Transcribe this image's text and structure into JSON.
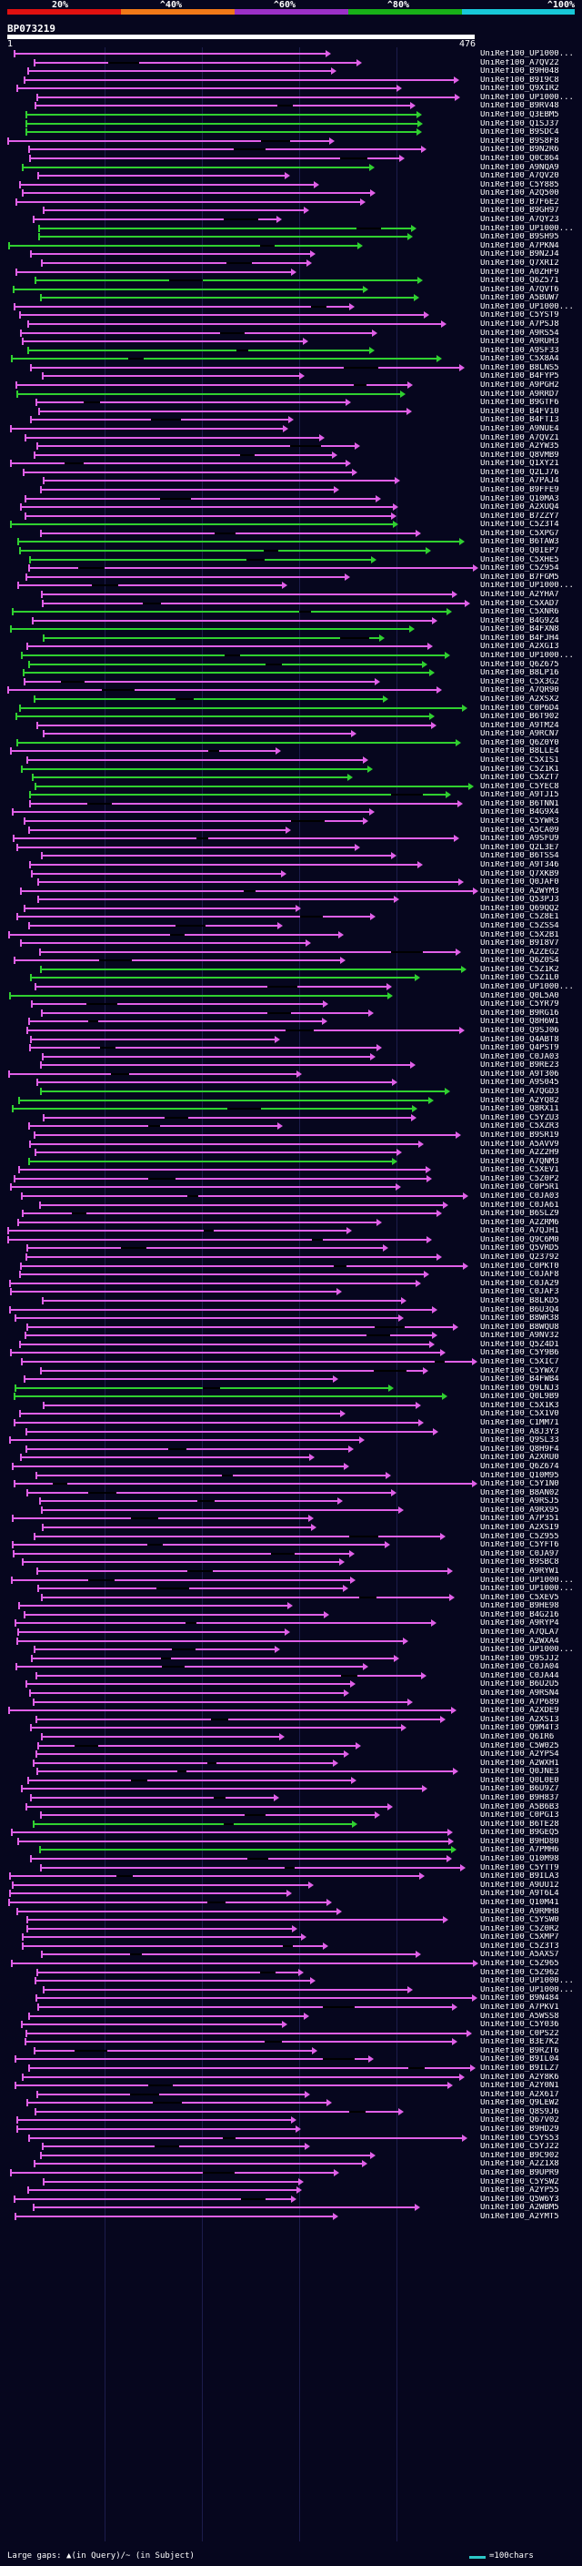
{
  "legend": {
    "labels": [
      "20%",
      "^40%",
      "^60%",
      "^80%",
      "^100%"
    ],
    "colors": [
      "#e01010",
      "#f07818",
      "#9b30c8",
      "#18b018",
      "#18c8d8"
    ]
  },
  "query": {
    "title": "BP073219",
    "start": "1",
    "end": "476"
  },
  "hit_colors": {
    "magenta": "#e060e8",
    "green": "#30d030",
    "black_bar": "#000000"
  },
  "footer": {
    "gaps_text": "Large gaps: ▲(in Query)/~ (in Subject)",
    "scale_text": "=100chars"
  },
  "hits": [
    {
      "label": "UniRef100_UP1000...",
      "color": "magenta"
    },
    {
      "label": "UniRef100_A7QV22",
      "color": "magenta"
    },
    {
      "label": "UniRef100_B9H048",
      "color": "magenta"
    },
    {
      "label": "UniRef100_B9I9C8",
      "color": "magenta"
    },
    {
      "label": "UniRef100_Q9XIR2",
      "color": "magenta"
    },
    {
      "label": "UniRef100_UP1000...",
      "color": "magenta"
    },
    {
      "label": "UniRef100_B9RV48",
      "color": "magenta"
    },
    {
      "label": "UniRef100_Q3EBM5",
      "color": "green"
    },
    {
      "label": "UniRef100_Q1SJ37",
      "color": "green"
    },
    {
      "label": "UniRef100_B9SDC4",
      "color": "green"
    },
    {
      "label": "UniRef100_B9S8F8",
      "color": "magenta"
    },
    {
      "label": "UniRef100_B9N2R6",
      "color": "magenta"
    },
    {
      "label": "UniRef100_Q0C864",
      "color": "magenta"
    },
    {
      "label": "UniRef100_A9NQA9",
      "color": "green"
    },
    {
      "label": "UniRef100_A7QV20",
      "color": "magenta"
    },
    {
      "label": "UniRef100_C5Y885",
      "color": "magenta"
    },
    {
      "label": "UniRef100_A2Q500",
      "color": "magenta"
    },
    {
      "label": "UniRef100_B7F6E2",
      "color": "magenta"
    },
    {
      "label": "UniRef100_B9GH97",
      "color": "magenta"
    },
    {
      "label": "UniRef100_A7QY23",
      "color": "magenta"
    },
    {
      "label": "UniRef100_UP1000...",
      "color": "green"
    },
    {
      "label": "UniRef100_B9SH95",
      "color": "green"
    },
    {
      "label": "UniRef100_A7PKN4",
      "color": "green"
    },
    {
      "label": "UniRef100_B9N2J4",
      "color": "magenta"
    },
    {
      "label": "UniRef100_Q7XRI2",
      "color": "magenta"
    },
    {
      "label": "UniRef100_A0ZHF9",
      "color": "magenta"
    },
    {
      "label": "UniRef100_Q6Z571",
      "color": "green"
    },
    {
      "label": "UniRef100_A7QVT6",
      "color": "green"
    },
    {
      "label": "UniRef100_A5BUW7",
      "color": "green"
    },
    {
      "label": "UniRef100_UP1000...",
      "color": "magenta"
    },
    {
      "label": "UniRef100_C5YST9",
      "color": "magenta"
    },
    {
      "label": "UniRef100_A7PSJ8",
      "color": "magenta"
    },
    {
      "label": "UniRef100_A9RS54",
      "color": "magenta"
    },
    {
      "label": "UniRef100_A9RUH3",
      "color": "magenta"
    },
    {
      "label": "UniRef100_A9SF33",
      "color": "green"
    },
    {
      "label": "UniRef100_C5X8A4",
      "color": "green"
    },
    {
      "label": "UniRef100_B8LNS5",
      "color": "magenta"
    },
    {
      "label": "UniRef100_B4FYP5",
      "color": "magenta"
    },
    {
      "label": "UniRef100_A9PGH2",
      "color": "magenta"
    },
    {
      "label": "UniRef100_A9RRD7",
      "color": "green"
    },
    {
      "label": "UniRef100_B9GTF6",
      "color": "magenta"
    },
    {
      "label": "UniRef100_B4FV10",
      "color": "magenta"
    },
    {
      "label": "UniRef100_B4FTI3",
      "color": "magenta"
    },
    {
      "label": "UniRef100_A9NUE4",
      "color": "magenta"
    },
    {
      "label": "UniRef100_A7QVZ1",
      "color": "magenta"
    },
    {
      "label": "UniRef100_A2YW35",
      "color": "magenta"
    },
    {
      "label": "UniRef100_Q8VMB9",
      "color": "magenta"
    },
    {
      "label": "UniRef100_Q1XY21",
      "color": "magenta"
    },
    {
      "label": "UniRef100_Q2LJ76",
      "color": "magenta"
    },
    {
      "label": "UniRef100_A7PAJ4",
      "color": "magenta"
    },
    {
      "label": "UniRef100_B9FFE9",
      "color": "magenta"
    },
    {
      "label": "UniRef100_Q10MA3",
      "color": "magenta"
    },
    {
      "label": "UniRef100_A2XUQ4",
      "color": "magenta"
    },
    {
      "label": "UniRef100_B7ZZY7",
      "color": "magenta"
    },
    {
      "label": "UniRef100_C5Z3T4",
      "color": "green"
    },
    {
      "label": "UniRef100_C5XPG7",
      "color": "magenta"
    },
    {
      "label": "UniRef100_B6TAW3",
      "color": "green"
    },
    {
      "label": "UniRef100_Q0IEP7",
      "color": "green"
    },
    {
      "label": "UniRef100_C5XHE5",
      "color": "green"
    },
    {
      "label": "UniRef100_C5Z954",
      "color": "magenta"
    },
    {
      "label": "UniRef100_B7FGM5",
      "color": "magenta"
    },
    {
      "label": "UniRef100_UP1000...",
      "color": "magenta"
    },
    {
      "label": "UniRef100_A2YHA7",
      "color": "magenta"
    },
    {
      "label": "UniRef100_C5XAD7",
      "color": "magenta"
    },
    {
      "label": "UniRef100_C5XNR6",
      "color": "green"
    },
    {
      "label": "UniRef100_B4G9Z4",
      "color": "magenta"
    },
    {
      "label": "UniRef100_B4FXN8",
      "color": "green"
    },
    {
      "label": "UniRef100_B4FJH4",
      "color": "green"
    },
    {
      "label": "UniRef100_A2XGI3",
      "color": "magenta"
    },
    {
      "label": "UniRef100_UP1000...",
      "color": "green"
    },
    {
      "label": "UniRef100_Q6Z675",
      "color": "green"
    },
    {
      "label": "UniRef100_B8LP16",
      "color": "green"
    },
    {
      "label": "UniRef100_C5X3G2",
      "color": "magenta"
    },
    {
      "label": "UniRef100_A7QR90",
      "color": "magenta"
    },
    {
      "label": "UniRef100_A2XSX2",
      "color": "green"
    },
    {
      "label": "UniRef100_C0P6D4",
      "color": "green"
    },
    {
      "label": "UniRef100_B6T902",
      "color": "green"
    },
    {
      "label": "UniRef100_A9TM24",
      "color": "magenta"
    },
    {
      "label": "UniRef100_A9RCN7",
      "color": "magenta"
    },
    {
      "label": "UniRef100_Q6Z0Y0",
      "color": "green"
    },
    {
      "label": "UniRef100_B8LLE4",
      "color": "magenta"
    },
    {
      "label": "UniRef100_C5XIS1",
      "color": "magenta"
    },
    {
      "label": "UniRef100_C5Z1K1",
      "color": "green"
    },
    {
      "label": "UniRef100_C5XZT7",
      "color": "green"
    },
    {
      "label": "UniRef100_C5YEC8",
      "color": "green"
    },
    {
      "label": "UniRef100_A9TJI5",
      "color": "green"
    },
    {
      "label": "UniRef100_B6TNN1",
      "color": "magenta"
    },
    {
      "label": "UniRef100_B4G9X4",
      "color": "magenta"
    },
    {
      "label": "UniRef100_C5YWR3",
      "color": "magenta"
    },
    {
      "label": "UniRef100_A5CA09",
      "color": "magenta"
    },
    {
      "label": "UniRef100_A9SFU9",
      "color": "magenta"
    },
    {
      "label": "UniRef100_Q2L3E7",
      "color": "magenta"
    },
    {
      "label": "UniRef100_B6TSS4",
      "color": "magenta"
    },
    {
      "label": "UniRef100_A9T346",
      "color": "magenta"
    },
    {
      "label": "UniRef100_Q7XKB9",
      "color": "magenta"
    },
    {
      "label": "UniRef100_Q0JAF0",
      "color": "magenta"
    },
    {
      "label": "UniRef100_A2WYM3",
      "color": "magenta"
    },
    {
      "label": "UniRef100_Q53PJ3",
      "color": "magenta"
    },
    {
      "label": "UniRef100_Q69QQ2",
      "color": "magenta"
    },
    {
      "label": "UniRef100_C5Z8E1",
      "color": "magenta"
    },
    {
      "label": "UniRef100_C5ZSS4",
      "color": "magenta"
    },
    {
      "label": "UniRef100_C5X2B1",
      "color": "magenta"
    },
    {
      "label": "UniRef100_B9I8V7",
      "color": "magenta"
    },
    {
      "label": "UniRef100_A2ZEG2",
      "color": "magenta"
    },
    {
      "label": "UniRef100_Q6Z0S4",
      "color": "magenta"
    },
    {
      "label": "UniRef100_C5Z1K2",
      "color": "green"
    },
    {
      "label": "UniRef100_C5Z1L0",
      "color": "green"
    },
    {
      "label": "UniRef100_UP1000...",
      "color": "magenta"
    },
    {
      "label": "UniRef100_Q0L5A0",
      "color": "green"
    },
    {
      "label": "UniRef100_C5YR79",
      "color": "magenta"
    },
    {
      "label": "UniRef100_B9RG16",
      "color": "magenta"
    },
    {
      "label": "UniRef100_Q8H6W1",
      "color": "magenta"
    },
    {
      "label": "UniRef100_Q9SJ06",
      "color": "magenta"
    },
    {
      "label": "UniRef100_Q4ABT8",
      "color": "magenta"
    },
    {
      "label": "UniRef100_Q4PST9",
      "color": "magenta"
    },
    {
      "label": "UniRef100_C0JA03",
      "color": "magenta"
    },
    {
      "label": "UniRef100_B9RE23",
      "color": "magenta"
    },
    {
      "label": "UniRef100_A9T306",
      "color": "magenta"
    },
    {
      "label": "UniRef100_A9S045",
      "color": "magenta"
    },
    {
      "label": "UniRef100_A7QGD3",
      "color": "green"
    },
    {
      "label": "UniRef100_A2YQ82",
      "color": "green"
    },
    {
      "label": "UniRef100_Q8RX11",
      "color": "green"
    },
    {
      "label": "UniRef100_C5YZU3",
      "color": "magenta"
    },
    {
      "label": "UniRef100_C5XZR3",
      "color": "magenta"
    },
    {
      "label": "UniRef100_B9SR19",
      "color": "magenta"
    },
    {
      "label": "UniRef100_A5AVV9",
      "color": "magenta"
    },
    {
      "label": "UniRef100_A2Z2H9",
      "color": "magenta"
    },
    {
      "label": "UniRef100_A7QNM3",
      "color": "green"
    },
    {
      "label": "UniRef100_C5XEV1",
      "color": "magenta"
    },
    {
      "label": "UniRef100_C5Z0P2",
      "color": "magenta"
    },
    {
      "label": "UniRef100_C0P5R1",
      "color": "magenta"
    },
    {
      "label": "UniRef100_C0JA03",
      "color": "magenta"
    },
    {
      "label": "UniRef100_C0JA61",
      "color": "magenta"
    },
    {
      "label": "UniRef100_B6SLZ9",
      "color": "magenta"
    },
    {
      "label": "UniRef100_A2ZRM6",
      "color": "magenta"
    },
    {
      "label": "UniRef100_A7QJH1",
      "color": "magenta"
    },
    {
      "label": "UniRef100_Q9C6M0",
      "color": "magenta"
    },
    {
      "label": "UniRef100_Q5VRD5",
      "color": "magenta"
    },
    {
      "label": "UniRef100_Q23792",
      "color": "magenta"
    },
    {
      "label": "UniRef100_C0PKT0",
      "color": "magenta"
    },
    {
      "label": "UniRef100_C0JAF8",
      "color": "magenta"
    },
    {
      "label": "UniRef100_C0JA29",
      "color": "magenta"
    },
    {
      "label": "UniRef100_C0JAF3",
      "color": "magenta"
    },
    {
      "label": "UniRef100_B8LKD5",
      "color": "magenta"
    },
    {
      "label": "UniRef100_B6U3Q4",
      "color": "magenta"
    },
    {
      "label": "UniRef100_B8WR38",
      "color": "magenta"
    },
    {
      "label": "UniRef100_B8WQU8",
      "color": "magenta"
    },
    {
      "label": "UniRef100_A9NV32",
      "color": "magenta"
    },
    {
      "label": "UniRef100_Q5Z4D1",
      "color": "magenta"
    },
    {
      "label": "UniRef100_C5Y9B6",
      "color": "magenta"
    },
    {
      "label": "UniRef100_C5XIC7",
      "color": "magenta"
    },
    {
      "label": "UniRef100_C5YWX7",
      "color": "magenta"
    },
    {
      "label": "UniRef100_B4FWB4",
      "color": "magenta"
    },
    {
      "label": "UniRef100_Q9LNJ3",
      "color": "green"
    },
    {
      "label": "UniRef100_Q0L9B9",
      "color": "green"
    },
    {
      "label": "UniRef100_C5X1K3",
      "color": "magenta"
    },
    {
      "label": "UniRef100_C5X1V0",
      "color": "magenta"
    },
    {
      "label": "UniRef100_C1MM71",
      "color": "magenta"
    },
    {
      "label": "UniRef100_A8J3Y3",
      "color": "magenta"
    },
    {
      "label": "UniRef100_Q9SL33",
      "color": "magenta"
    },
    {
      "label": "UniRef100_Q8H9F4",
      "color": "magenta"
    },
    {
      "label": "UniRef100_A2XRU0",
      "color": "magenta"
    },
    {
      "label": "UniRef100_Q6Z674",
      "color": "magenta"
    },
    {
      "label": "UniRef100_Q10M95",
      "color": "magenta"
    },
    {
      "label": "UniRef100_C5Y1N0",
      "color": "magenta"
    },
    {
      "label": "UniRef100_B8AN02",
      "color": "magenta"
    },
    {
      "label": "UniRef100_A9RSJ5",
      "color": "magenta"
    },
    {
      "label": "UniRef100_A9RX95",
      "color": "magenta"
    },
    {
      "label": "UniRef100_A7P351",
      "color": "magenta"
    },
    {
      "label": "UniRef100_A2XSI9",
      "color": "magenta"
    },
    {
      "label": "UniRef100_C5Z955",
      "color": "magenta"
    },
    {
      "label": "UniRef100_C5YFT6",
      "color": "magenta"
    },
    {
      "label": "UniRef100_C0JA97",
      "color": "magenta"
    },
    {
      "label": "UniRef100_B9SBC8",
      "color": "magenta"
    },
    {
      "label": "UniRef100_A9RYW1",
      "color": "magenta"
    },
    {
      "label": "UniRef100_UP1000...",
      "color": "magenta"
    },
    {
      "label": "UniRef100_UP1000...",
      "color": "magenta"
    },
    {
      "label": "UniRef100_C5XEV5",
      "color": "magenta"
    },
    {
      "label": "UniRef100_B9HE98",
      "color": "magenta"
    },
    {
      "label": "UniRef100_B4G216",
      "color": "magenta"
    },
    {
      "label": "UniRef100_A9RYP4",
      "color": "magenta"
    },
    {
      "label": "UniRef100_A7QLA7",
      "color": "magenta"
    },
    {
      "label": "UniRef100_A2WXA4",
      "color": "magenta"
    },
    {
      "label": "UniRef100_UP1000...",
      "color": "magenta"
    },
    {
      "label": "UniRef100_Q9SJJ2",
      "color": "magenta"
    },
    {
      "label": "UniRef100_C0JA04",
      "color": "magenta"
    },
    {
      "label": "UniRef100_C0JA44",
      "color": "magenta"
    },
    {
      "label": "UniRef100_B6U2U5",
      "color": "magenta"
    },
    {
      "label": "UniRef100_A9RSN4",
      "color": "magenta"
    },
    {
      "label": "UniRef100_A7P689",
      "color": "magenta"
    },
    {
      "label": "UniRef100_A2XDE9",
      "color": "magenta"
    },
    {
      "label": "UniRef100_A2XSI3",
      "color": "magenta"
    },
    {
      "label": "UniRef100_Q9M4T3",
      "color": "magenta"
    },
    {
      "label": "UniRef100_Q6IR6",
      "color": "magenta"
    },
    {
      "label": "UniRef100_C5W025",
      "color": "magenta"
    },
    {
      "label": "UniRef100_A2YPS4",
      "color": "magenta"
    },
    {
      "label": "UniRef100_A2WXH1",
      "color": "magenta"
    },
    {
      "label": "UniRef100_Q0JNE3",
      "color": "magenta"
    },
    {
      "label": "UniRef100_Q0L0E0",
      "color": "magenta"
    },
    {
      "label": "UniRef100_B6U9Z7",
      "color": "magenta"
    },
    {
      "label": "UniRef100_B9H837",
      "color": "magenta"
    },
    {
      "label": "UniRef100_A5B6B3",
      "color": "magenta"
    },
    {
      "label": "UniRef100_C0PGI3",
      "color": "magenta"
    },
    {
      "label": "UniRef100_B6TE28",
      "color": "green"
    },
    {
      "label": "UniRef100_B9GEQ5",
      "color": "magenta"
    },
    {
      "label": "UniRef100_B9HD80",
      "color": "magenta"
    },
    {
      "label": "UniRef100_A7PMH6",
      "color": "green"
    },
    {
      "label": "UniRef100_Q10M98",
      "color": "magenta"
    },
    {
      "label": "UniRef100_C5YTT9",
      "color": "magenta"
    },
    {
      "label": "UniRef100_B9ILA3",
      "color": "magenta"
    },
    {
      "label": "UniRef100_A9UU12",
      "color": "magenta"
    },
    {
      "label": "UniRef100_A9T6L4",
      "color": "magenta"
    },
    {
      "label": "UniRef100_Q10M41",
      "color": "magenta"
    },
    {
      "label": "UniRef100_A9RMH8",
      "color": "magenta"
    },
    {
      "label": "UniRef100_C5YSW0",
      "color": "magenta"
    },
    {
      "label": "UniRef100_C5Z0R2",
      "color": "magenta"
    },
    {
      "label": "UniRef100_C5XMP7",
      "color": "magenta"
    },
    {
      "label": "UniRef100_C5Z3T3",
      "color": "magenta"
    },
    {
      "label": "UniRef100_A5AXS7",
      "color": "magenta"
    },
    {
      "label": "UniRef100_C5Z965",
      "color": "magenta"
    },
    {
      "label": "UniRef100_C5Z962",
      "color": "magenta"
    },
    {
      "label": "UniRef100_UP1000...",
      "color": "magenta"
    },
    {
      "label": "UniRef100_UP1000...",
      "color": "magenta"
    },
    {
      "label": "UniRef100_B9N484",
      "color": "magenta"
    },
    {
      "label": "UniRef100_A7PKV1",
      "color": "magenta"
    },
    {
      "label": "UniRef100_A5WSS8",
      "color": "magenta"
    },
    {
      "label": "UniRef100_C5Y036",
      "color": "magenta"
    },
    {
      "label": "UniRef100_C0PS22",
      "color": "magenta"
    },
    {
      "label": "UniRef100_B3E7K2",
      "color": "magenta"
    },
    {
      "label": "UniRef100_B9RZT6",
      "color": "magenta"
    },
    {
      "label": "UniRef100_B9IL04",
      "color": "magenta"
    },
    {
      "label": "UniRef100_B9ILZ7",
      "color": "magenta"
    },
    {
      "label": "UniRef100_A2Y8K6",
      "color": "magenta"
    },
    {
      "label": "UniRef100_A2Y0N1",
      "color": "magenta"
    },
    {
      "label": "UniRef100_A2X617",
      "color": "magenta"
    },
    {
      "label": "UniRef100_Q9LEW2",
      "color": "magenta"
    },
    {
      "label": "UniRef100_Q8S9J6",
      "color": "magenta"
    },
    {
      "label": "UniRef100_Q67V02",
      "color": "magenta"
    },
    {
      "label": "UniRef100_B9HD29",
      "color": "magenta"
    },
    {
      "label": "UniRef100_C5YS53",
      "color": "magenta"
    },
    {
      "label": "UniRef100_C5YJ22",
      "color": "magenta"
    },
    {
      "label": "UniRef100_B9C902",
      "color": "magenta"
    },
    {
      "label": "UniRef100_A2Z1X8",
      "color": "magenta"
    },
    {
      "label": "UniRef100_B9UPR9",
      "color": "magenta"
    },
    {
      "label": "UniRef100_C5YSW2",
      "color": "magenta"
    },
    {
      "label": "UniRef100_A2YP55",
      "color": "magenta"
    },
    {
      "label": "UniRef100_Q5W6Y3",
      "color": "magenta"
    },
    {
      "label": "UniRef100_A2WBM5",
      "color": "magenta"
    },
    {
      "label": "UniRef100_A2YMT5",
      "color": "magenta"
    }
  ]
}
